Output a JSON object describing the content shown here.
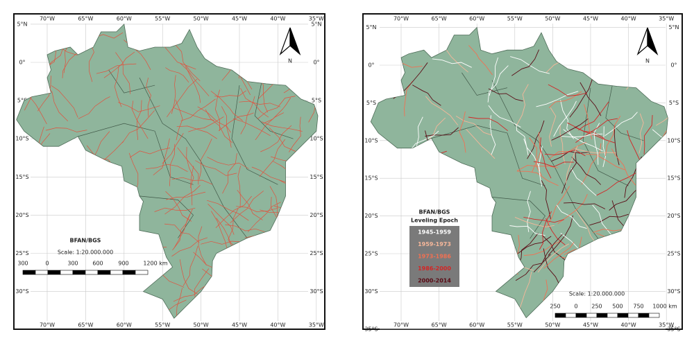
{
  "panels": [
    {
      "lon_labels": [
        "70°W",
        "65°W",
        "60°W",
        "55°W",
        "50°W",
        "45°W",
        "40°W",
        "35°W"
      ],
      "lat_labels": [
        "5°N",
        "0°",
        "5°S",
        "10°S",
        "15°S",
        "20°S",
        "25°S",
        "30°S"
      ],
      "title": "BFAN/BGS",
      "scale": "Scale: 1:20.000.000",
      "scale_labels": [
        "300",
        "0",
        "300",
        "600",
        "900",
        "1200 km"
      ],
      "north": "N"
    },
    {
      "lon_labels": [
        "70°W",
        "65°W",
        "60°W",
        "55°W",
        "50°W",
        "45°W",
        "40°W",
        "35°W"
      ],
      "lat_labels": [
        "5°N",
        "0°",
        "5°S",
        "10°S",
        "15°S",
        "20°S",
        "25°S",
        "30°S",
        "35°S"
      ],
      "scale": "Scale: 1:20.000.000",
      "scale_labels": [
        "250",
        "0",
        "250",
        "500",
        "750",
        "1000 km"
      ],
      "north": "N",
      "legend": {
        "title": "BFAN/BGS",
        "subtitle": "Leveling Epoch",
        "entries": [
          {
            "label": "1945-1959",
            "color": "#ffffff"
          },
          {
            "label": "1959-1973",
            "color": "#f6b79a"
          },
          {
            "label": "1973-1986",
            "color": "#f27052"
          },
          {
            "label": "1986-2000",
            "color": "#d42424"
          },
          {
            "label": "2000-2014",
            "color": "#5a0a14"
          }
        ]
      }
    }
  ]
}
